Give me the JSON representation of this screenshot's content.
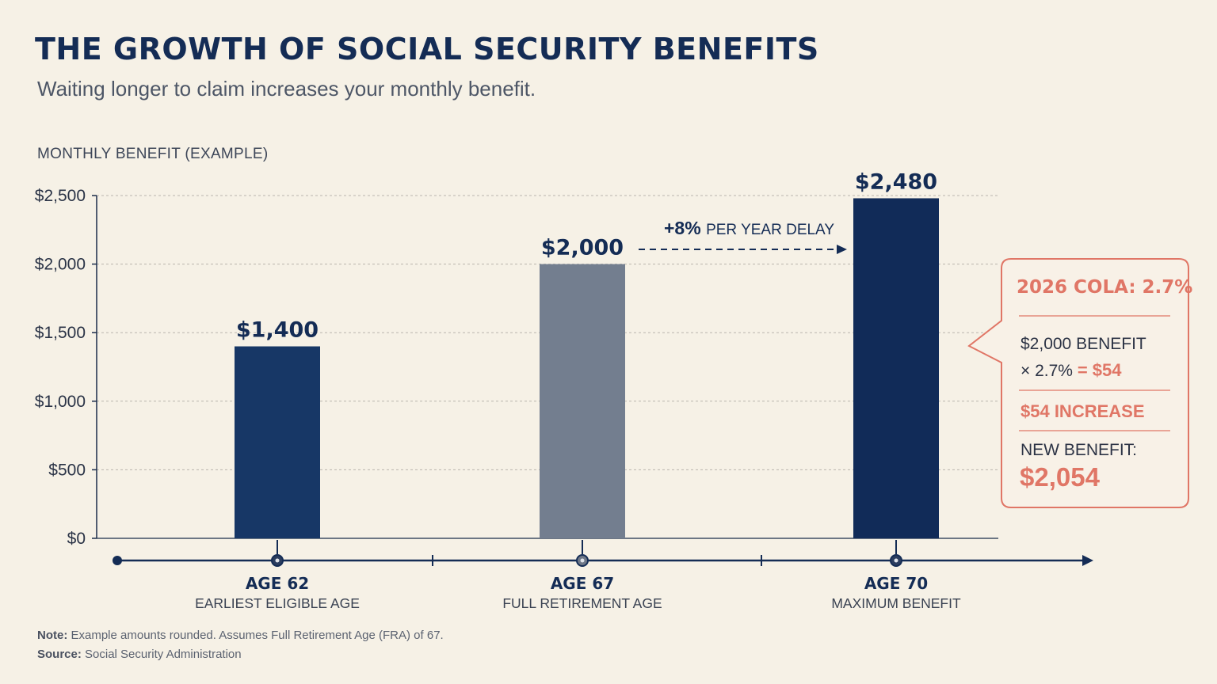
{
  "header": {
    "title": "THE GROWTH OF SOCIAL SECURITY BENEFITS",
    "subtitle": "Waiting longer to claim increases your monthly benefit."
  },
  "chart_data": {
    "type": "bar",
    "title": "THE GROWTH OF SOCIAL SECURITY BENEFITS",
    "subtitle": "Waiting longer to claim increases your monthly benefit.",
    "ylabel": "MONTHLY BENEFIT (EXAMPLE)",
    "ylim": [
      0,
      2500
    ],
    "yticks": [
      0,
      500,
      1000,
      1500,
      2000,
      2500
    ],
    "ytick_labels": [
      "$0",
      "$500",
      "$1,000",
      "$1,500",
      "$2,000",
      "$2,500"
    ],
    "grid": true,
    "categories": [
      "AGE 62",
      "AGE 67",
      "AGE 70"
    ],
    "category_sublabels": [
      "EARLIEST ELIGIBLE AGE",
      "FULL RETIREMENT AGE",
      "MAXIMUM BENEFIT"
    ],
    "values": [
      1400,
      2000,
      2480
    ],
    "data_labels": [
      "$1,400",
      "$2,000",
      "$2,480"
    ],
    "bar_colors": [
      "#173766",
      "#737e8f",
      "#112b58"
    ],
    "annotation": {
      "strong": "+8%",
      "text": "PER YEAR DELAY"
    }
  },
  "callout": {
    "title": "2026 COLA: 2.7%",
    "line1": "$2,000 BENEFIT",
    "line2_a": "× 2.7% ",
    "line2_b": "= $54",
    "increase": "$54 INCREASE",
    "new_label": "NEW BENEFIT:",
    "new_value": "$2,054"
  },
  "footer": {
    "note_label": "Note:",
    "note_text": " Example amounts rounded. Assumes Full Retirement Age (FRA) of 67.",
    "source_label": "Source:",
    "source_text": " Social Security Administration"
  },
  "colors": {
    "background": "#f6f1e6",
    "navy": "#142c55",
    "gray_bar": "#737e8f",
    "accent": "#e07666",
    "grid": "#b9b5ad"
  }
}
